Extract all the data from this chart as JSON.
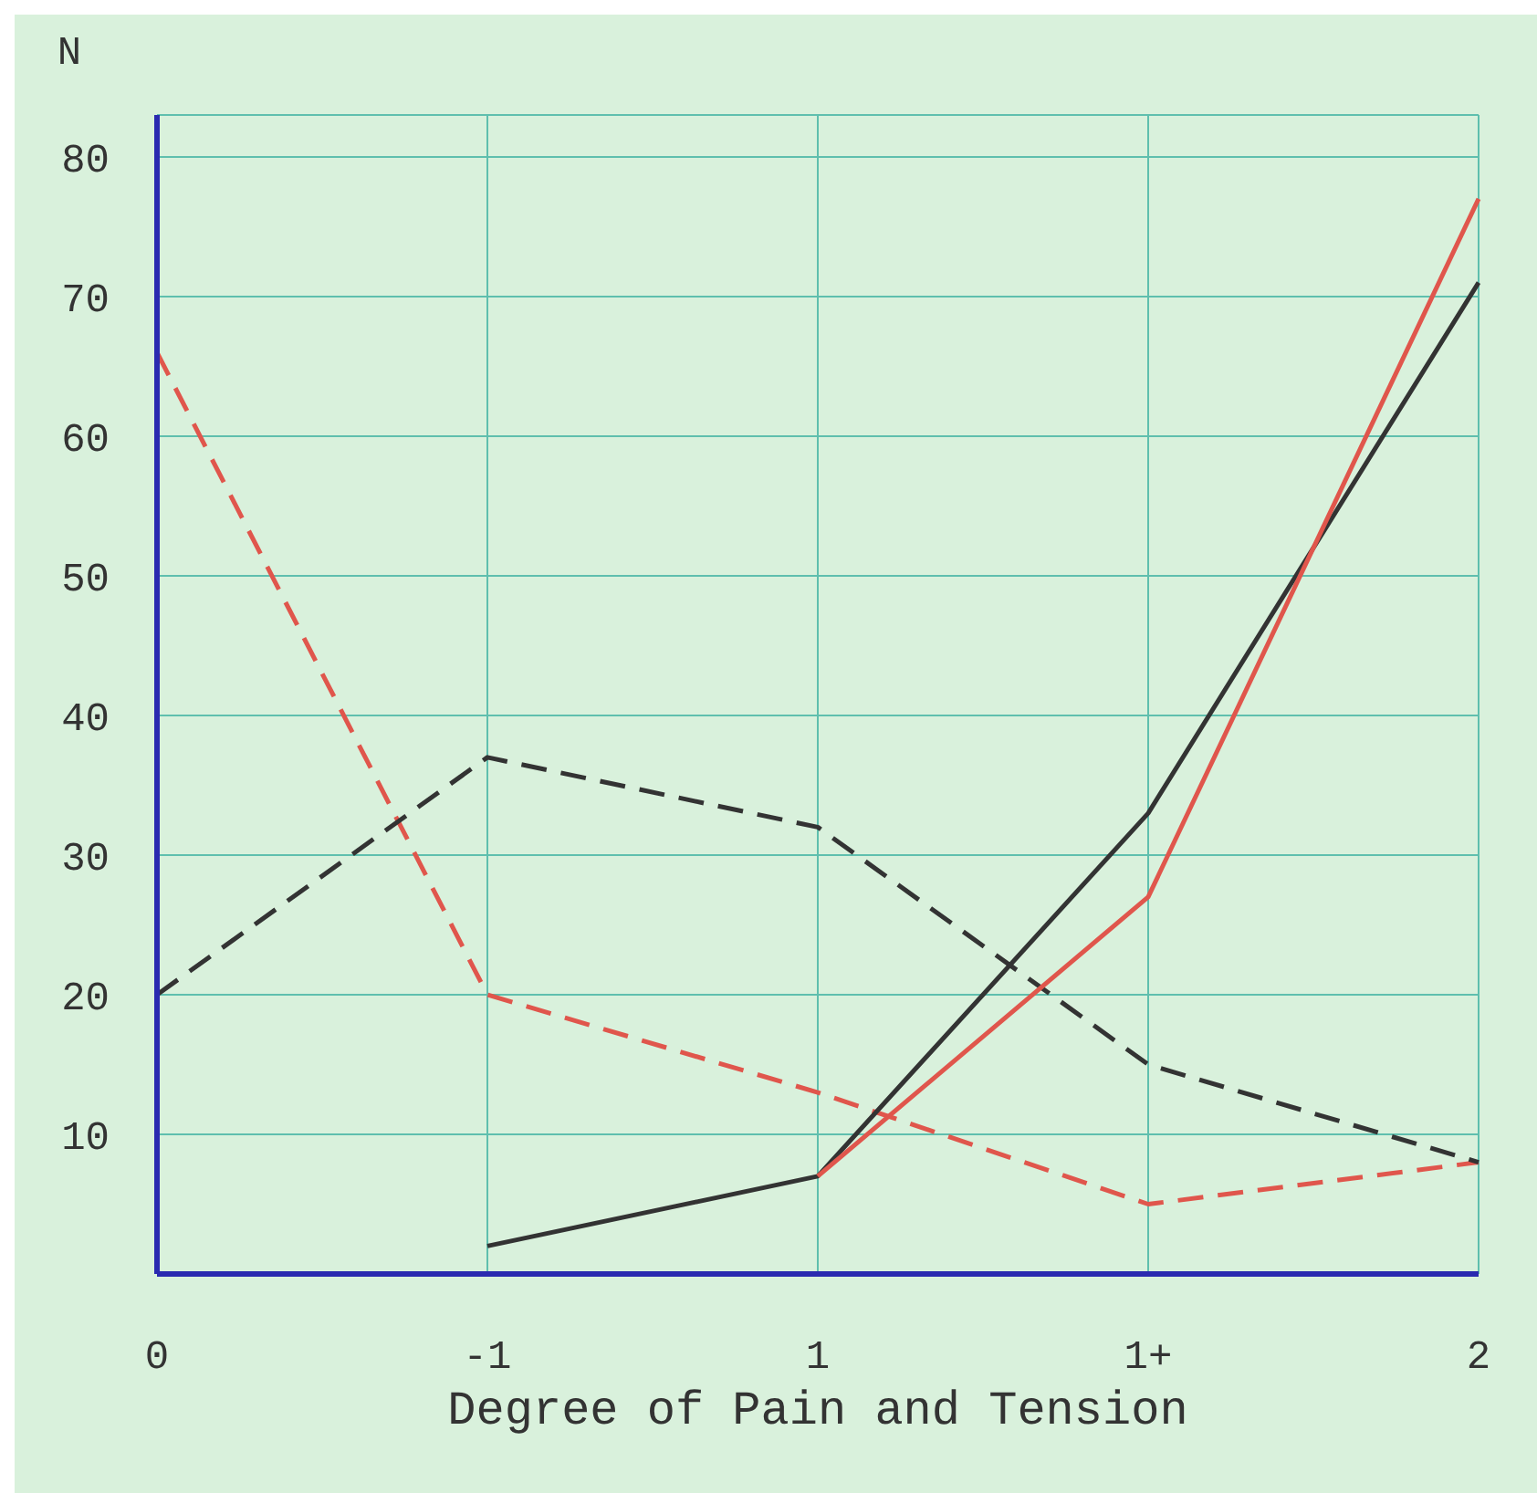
{
  "chart_data": {
    "type": "line",
    "xlabel": "Degree of Pain and Tension",
    "ylabel": "N",
    "categories": [
      "0",
      "-1",
      "1",
      "1+",
      "2"
    ],
    "series": [
      {
        "color": "#e0564c",
        "line_style": "dashed",
        "values": [
          66,
          20,
          13,
          5,
          8
        ]
      },
      {
        "color": "#333333",
        "line_style": "dashed",
        "values": [
          20,
          37,
          32,
          15,
          8
        ]
      },
      {
        "color": "#333333",
        "line_style": "solid",
        "values": [
          null,
          2,
          7,
          33,
          71
        ]
      },
      {
        "color": "#e0564c",
        "line_style": "solid",
        "values": [
          null,
          null,
          7,
          27,
          77
        ]
      }
    ],
    "ylim": [
      0,
      83
    ],
    "yticks": [
      10,
      20,
      30,
      40,
      50,
      60,
      70,
      80
    ],
    "grid": true,
    "marker": "none"
  }
}
